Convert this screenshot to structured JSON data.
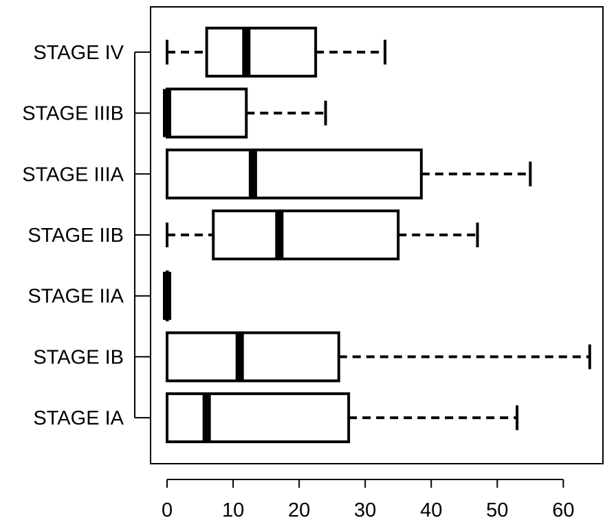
{
  "chart_data": {
    "type": "boxplot",
    "orientation": "horizontal",
    "title": "",
    "xlabel": "",
    "ylabel": "",
    "xlim": [
      -2.5,
      66
    ],
    "xticks": [
      0,
      10,
      20,
      30,
      40,
      50,
      60
    ],
    "xtick_labels": [
      "0",
      "10",
      "20",
      "30",
      "40",
      "50",
      "60"
    ],
    "grid": false,
    "legend": "none",
    "colors": {
      "box_fill": "#ffffff",
      "stroke": "#000000"
    },
    "categories": [
      "STAGE IA",
      "STAGE IB",
      "STAGE IIA",
      "STAGE IIB",
      "STAGE IIIA",
      "STAGE IIIB",
      "STAGE IV"
    ],
    "boxes": [
      {
        "category": "STAGE IA",
        "whisker_low": 0,
        "q1": 0,
        "median": 6,
        "q3": 27.5,
        "whisker_high": 53
      },
      {
        "category": "STAGE IB",
        "whisker_low": 0,
        "q1": 0,
        "median": 11,
        "q3": 26,
        "whisker_high": 64
      },
      {
        "category": "STAGE IIA",
        "whisker_low": 0,
        "q1": 0,
        "median": 0,
        "q3": 0,
        "whisker_high": 0
      },
      {
        "category": "STAGE IIB",
        "whisker_low": 0,
        "q1": 7,
        "median": 17,
        "q3": 35,
        "whisker_high": 47
      },
      {
        "category": "STAGE IIIA",
        "whisker_low": 0,
        "q1": 0,
        "median": 13,
        "q3": 38.5,
        "whisker_high": 55
      },
      {
        "category": "STAGE IIIB",
        "whisker_low": 0,
        "q1": 0,
        "median": 0,
        "q3": 12,
        "whisker_high": 24
      },
      {
        "category": "STAGE IV",
        "whisker_low": 0,
        "q1": 6,
        "median": 12,
        "q3": 22.5,
        "whisker_high": 33
      }
    ]
  }
}
